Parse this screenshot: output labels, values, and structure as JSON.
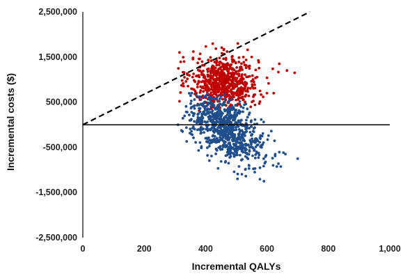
{
  "chart_data": {
    "type": "scatter",
    "title": "",
    "xlabel": "Incremental QALYs",
    "ylabel": "Incremental costs ($)",
    "xlim": [
      0,
      1000
    ],
    "ylim": [
      -2500000,
      2500000
    ],
    "x_ticks": [
      0,
      200,
      400,
      600,
      800,
      1000
    ],
    "x_tick_labels": [
      "0",
      "200",
      "400",
      "600",
      "800",
      "1,000"
    ],
    "y_ticks": [
      2500000,
      1500000,
      500000,
      -500000,
      -1500000,
      -2500000
    ],
    "y_tick_labels": [
      "2,500,000",
      "1,500,000",
      "500,000",
      "-500,000",
      "-1,500,000",
      "-2,500,000"
    ],
    "grid": false,
    "legend": "none",
    "reference_line": {
      "style": "dashed",
      "color": "#000000",
      "from": [
        0,
        0
      ],
      "to": [
        740,
        2500000
      ]
    },
    "series": [
      {
        "color": "#c00000",
        "description": "simulation draws with incremental costs mostly above zero",
        "center": [
          460,
          950000
        ],
        "spread": [
          55,
          280000
        ],
        "x_range": [
          310,
          700
        ],
        "y_range": [
          300000,
          1800000
        ],
        "count": 700,
        "points": [
          [
            315,
            1600000
          ],
          [
            360,
            1620000
          ],
          [
            505,
            1800000
          ],
          [
            690,
            1150000
          ],
          [
            665,
            1200000
          ],
          [
            315,
            520000
          ],
          [
            330,
            1400000
          ],
          [
            640,
            1350000
          ],
          [
            600,
            700000
          ],
          [
            410,
            480000
          ],
          [
            550,
            1500000
          ],
          [
            470,
            1620000
          ]
        ]
      },
      {
        "color": "#1f4e8c",
        "description": "simulation draws with incremental costs mostly below zero",
        "center": [
          470,
          -100000
        ],
        "spread": [
          60,
          320000
        ],
        "x_range": [
          310,
          700
        ],
        "y_range": [
          -1250000,
          700000
        ],
        "count": 800,
        "points": [
          [
            310,
            0
          ],
          [
            325,
            -150000
          ],
          [
            590,
            -1250000
          ],
          [
            700,
            -750000
          ],
          [
            660,
            -650000
          ],
          [
            355,
            700000
          ],
          [
            620,
            -900000
          ],
          [
            560,
            -1050000
          ],
          [
            400,
            -300000
          ],
          [
            480,
            -450000
          ],
          [
            530,
            -700000
          ],
          [
            440,
            200000
          ]
        ]
      }
    ]
  }
}
